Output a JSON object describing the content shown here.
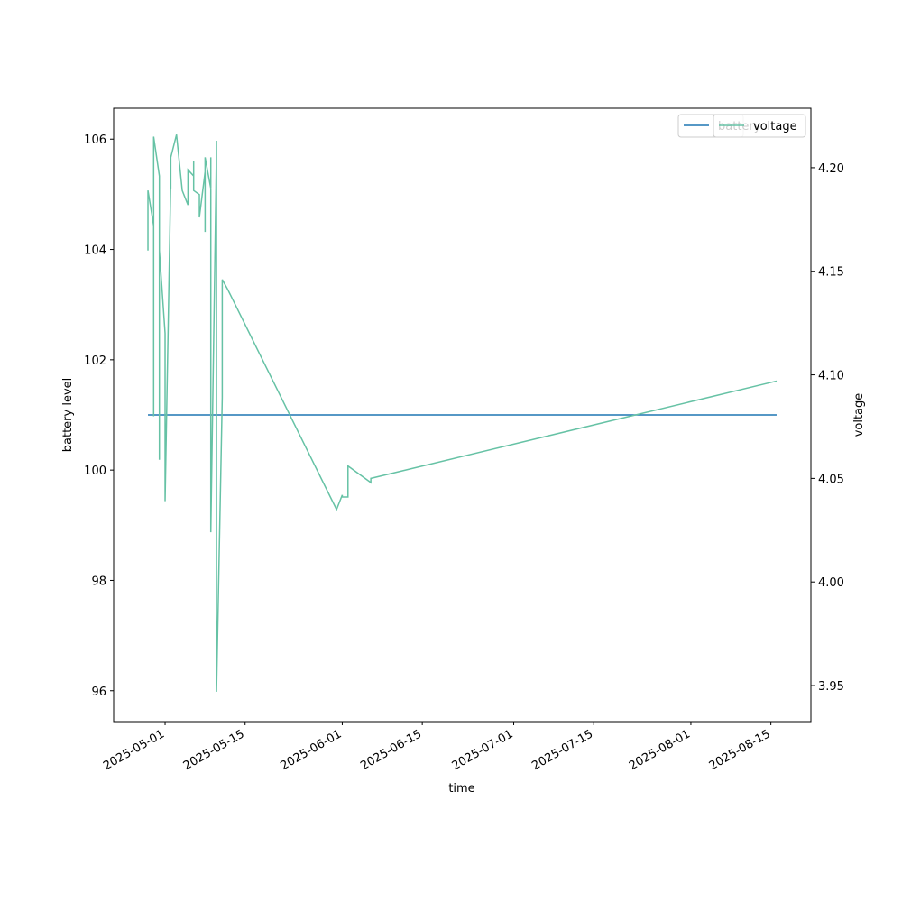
{
  "chart_data": {
    "type": "line",
    "xlabel": "time",
    "ylabel": "battery level",
    "y2label": "voltage",
    "xlim": [
      "2025-04-22",
      "2025-08-22"
    ],
    "xticks": [
      "2025-05-01",
      "2025-05-15",
      "2025-06-01",
      "2025-06-15",
      "2025-07-01",
      "2025-07-15",
      "2025-08-01",
      "2025-08-15"
    ],
    "ylim": [
      95.44,
      106.56
    ],
    "yticks": [
      96,
      98,
      100,
      102,
      104,
      106
    ],
    "y2lim": [
      3.9326,
      4.2287
    ],
    "y2ticks": [
      3.95,
      {
        "value": 4.0,
        "label": "4.00"
      },
      4.05,
      {
        "value": 4.1,
        "label": "4.10"
      },
      4.15,
      {
        "value": 4.2,
        "label": "4.20"
      }
    ],
    "legend": "upper right",
    "series": [
      {
        "name": "battery",
        "color": "#1f77b4",
        "x": [
          "2025-04-28",
          "2025-08-16"
        ],
        "values": [
          101,
          101
        ]
      },
      {
        "name": "voltage",
        "color": "#66c2a5",
        "axis": "y2",
        "x": [
          "2025-04-28",
          "2025-04-28",
          "2025-04-28",
          "2025-04-29",
          "2025-04-29",
          "2025-04-29",
          "2025-04-29",
          "2025-04-29",
          "2025-04-30",
          "2025-04-30",
          "2025-04-30",
          "2025-04-30",
          "2025-05-01",
          "2025-05-01",
          "2025-05-02",
          "2025-05-02",
          "2025-05-02",
          "2025-05-03",
          "2025-05-04",
          "2025-05-05",
          "2025-05-05",
          "2025-05-06",
          "2025-05-06",
          "2025-05-06",
          "2025-05-06",
          "2025-05-07",
          "2025-05-07",
          "2025-05-08",
          "2025-05-08",
          "2025-05-08",
          "2025-05-08",
          "2025-05-09",
          "2025-05-09",
          "2025-05-09",
          "2025-05-09",
          "2025-05-10",
          "2025-05-10",
          "2025-05-10",
          "2025-05-11",
          "2025-05-11",
          "2025-05-12",
          "2025-05-31",
          "2025-06-01",
          "2025-06-01",
          "2025-06-02",
          "2025-06-02",
          "2025-06-06",
          "2025-06-06",
          "2025-08-16"
        ],
        "values": [
          4.16,
          4.178,
          4.189,
          4.172,
          4.203,
          4.211,
          4.08,
          4.215,
          4.196,
          4.059,
          4.195,
          4.16,
          4.12,
          4.039,
          4.195,
          4.19,
          4.205,
          4.216,
          4.189,
          4.182,
          4.199,
          4.196,
          4.19,
          4.203,
          4.189,
          4.187,
          4.176,
          4.198,
          4.203,
          4.169,
          4.205,
          4.19,
          4.205,
          4.178,
          4.024,
          4.209,
          4.213,
          3.947,
          4.089,
          4.146,
          4.141,
          4.035,
          4.042,
          4.041,
          4.041,
          4.056,
          4.048,
          4.05,
          4.097
        ]
      }
    ]
  }
}
